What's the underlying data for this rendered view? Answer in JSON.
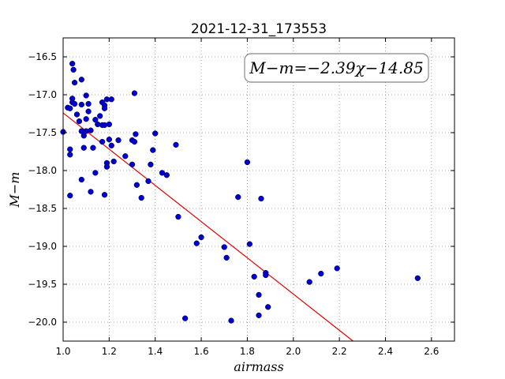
{
  "chart_data": {
    "type": "scatter",
    "title": "2021-12-31_173553",
    "xlabel": "airmass",
    "ylabel": "M−m",
    "annotation": "M−m=−2.39χ−14.85",
    "xlim": [
      1.0,
      2.7
    ],
    "ylim": [
      -16.25,
      -20.25
    ],
    "y_inverted": true,
    "grid": true,
    "xticks": [
      1.0,
      1.2,
      1.4,
      1.6,
      1.8,
      2.0,
      2.2,
      2.4,
      2.6
    ],
    "xtick_labels": [
      "1.0",
      "1.2",
      "1.4",
      "1.6",
      "1.8",
      "2.0",
      "2.2",
      "2.4",
      "2.6"
    ],
    "yticks": [
      -16.5,
      -17.0,
      -17.5,
      -18.0,
      -18.5,
      -19.0,
      -19.5,
      -20.0
    ],
    "ytick_labels": [
      "−16.5",
      "−17.0",
      "−17.5",
      "−18.0",
      "−18.5",
      "−19.0",
      "−19.5",
      "−20.0"
    ],
    "points": [
      [
        1.0,
        -17.49
      ],
      [
        1.02,
        -17.17
      ],
      [
        1.03,
        -17.18
      ],
      [
        1.03,
        -17.72
      ],
      [
        1.03,
        -17.79
      ],
      [
        1.03,
        -18.33
      ],
      [
        1.04,
        -17.05
      ],
      [
        1.04,
        -17.1
      ],
      [
        1.04,
        -16.59
      ],
      [
        1.045,
        -16.67
      ],
      [
        1.05,
        -16.84
      ],
      [
        1.05,
        -17.12
      ],
      [
        1.06,
        -17.26
      ],
      [
        1.07,
        -17.35
      ],
      [
        1.08,
        -16.8
      ],
      [
        1.08,
        -17.13
      ],
      [
        1.08,
        -17.48
      ],
      [
        1.08,
        -18.12
      ],
      [
        1.09,
        -17.54
      ],
      [
        1.09,
        -17.7
      ],
      [
        1.1,
        -17.01
      ],
      [
        1.1,
        -17.32
      ],
      [
        1.1,
        -17.48
      ],
      [
        1.11,
        -17.12
      ],
      [
        1.11,
        -17.22
      ],
      [
        1.12,
        -17.47
      ],
      [
        1.12,
        -18.28
      ],
      [
        1.13,
        -17.7
      ],
      [
        1.14,
        -17.33
      ],
      [
        1.14,
        -18.03
      ],
      [
        1.15,
        -17.39
      ],
      [
        1.16,
        -17.28
      ],
      [
        1.17,
        -17.1
      ],
      [
        1.17,
        -17.4
      ],
      [
        1.17,
        -17.62
      ],
      [
        1.18,
        -17.14
      ],
      [
        1.18,
        -17.18
      ],
      [
        1.18,
        -17.4
      ],
      [
        1.18,
        -18.32
      ],
      [
        1.19,
        -17.06
      ],
      [
        1.19,
        -17.9
      ],
      [
        1.19,
        -17.95
      ],
      [
        1.2,
        -17.39
      ],
      [
        1.2,
        -17.59
      ],
      [
        1.21,
        -17.06
      ],
      [
        1.21,
        -17.67
      ],
      [
        1.22,
        -17.88
      ],
      [
        1.24,
        -17.6
      ],
      [
        1.27,
        -17.81
      ],
      [
        1.3,
        -17.6
      ],
      [
        1.3,
        -17.92
      ],
      [
        1.31,
        -16.98
      ],
      [
        1.31,
        -17.62
      ],
      [
        1.315,
        -17.52
      ],
      [
        1.32,
        -18.19
      ],
      [
        1.34,
        -18.36
      ],
      [
        1.37,
        -18.14
      ],
      [
        1.38,
        -17.92
      ],
      [
        1.39,
        -17.73
      ],
      [
        1.4,
        -17.51
      ],
      [
        1.43,
        -18.03
      ],
      [
        1.45,
        -18.06
      ],
      [
        1.49,
        -17.66
      ],
      [
        1.5,
        -18.61
      ],
      [
        1.53,
        -19.95
      ],
      [
        1.58,
        -18.96
      ],
      [
        1.6,
        -18.88
      ],
      [
        1.7,
        -19.01
      ],
      [
        1.71,
        -19.15
      ],
      [
        1.73,
        -19.98
      ],
      [
        1.76,
        -18.35
      ],
      [
        1.8,
        -17.89
      ],
      [
        1.81,
        -18.97
      ],
      [
        1.83,
        -19.4
      ],
      [
        1.85,
        -19.64
      ],
      [
        1.85,
        -19.91
      ],
      [
        1.86,
        -18.37
      ],
      [
        1.88,
        -19.35
      ],
      [
        1.88,
        -19.38
      ],
      [
        1.89,
        -19.8
      ],
      [
        2.07,
        -19.47
      ],
      [
        2.12,
        -19.36
      ],
      [
        2.19,
        -19.29
      ],
      [
        2.54,
        -19.42
      ]
    ],
    "fit_line": {
      "slope": -2.39,
      "intercept": -14.85,
      "x_range": [
        1.0,
        2.26
      ]
    },
    "colors": {
      "points": "#0000cc",
      "fit": "#dd0000",
      "grid": "#888888"
    }
  }
}
